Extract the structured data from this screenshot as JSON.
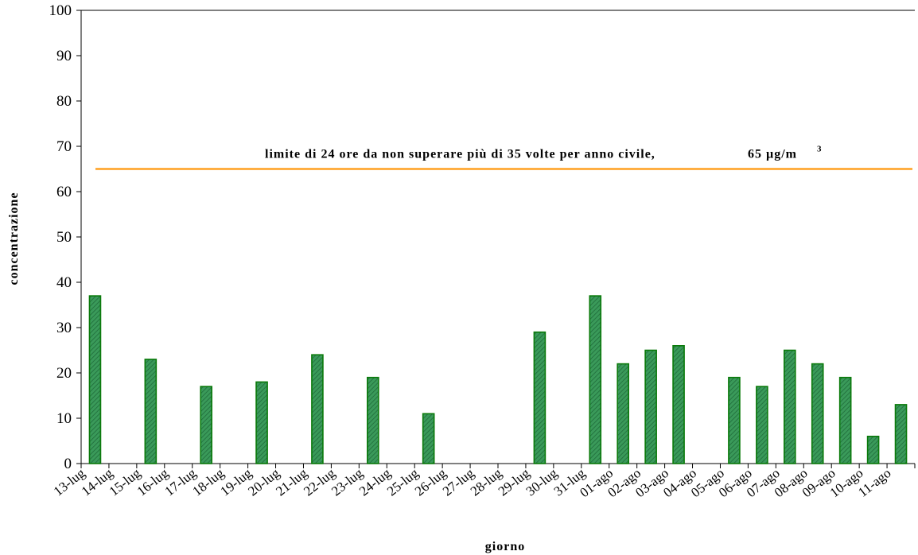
{
  "chart_data": {
    "type": "bar",
    "xlabel": "giorno",
    "ylabel": "concentrazione",
    "ylim": [
      0,
      100
    ],
    "yticks": [
      0,
      10,
      20,
      30,
      40,
      50,
      60,
      70,
      80,
      90,
      100
    ],
    "categories": [
      "13-lug",
      "14-lug",
      "15-lug",
      "16-lug",
      "17-lug",
      "18-lug",
      "19-lug",
      "20-lug",
      "21-lug",
      "22-lug",
      "23-lug",
      "24-lug",
      "25-lug",
      "26-lug",
      "27-lug",
      "28-lug",
      "29-lug",
      "30-lug",
      "31-lug",
      "01-ago",
      "02-ago",
      "03-ago",
      "04-ago",
      "05-ago",
      "06-ago",
      "07-ago",
      "08-ago",
      "09-ago",
      "10-ago",
      "11-ago"
    ],
    "values": [
      37,
      null,
      23,
      null,
      17,
      null,
      18,
      null,
      24,
      null,
      19,
      null,
      11,
      null,
      null,
      null,
      29,
      null,
      37,
      22,
      25,
      26,
      null,
      19,
      17,
      25,
      22,
      19,
      6,
      13
    ],
    "bar_color": "#2e8b57",
    "bar_border": "#0a7a0a",
    "grid": false,
    "legend": "none",
    "reference_line": {
      "value": 65,
      "color": "#ffa020",
      "label_text": "limite di 24 ore da non superare più di 35 volte per anno civile,",
      "label_value": "65 µg/m",
      "label_sup": "3"
    }
  }
}
